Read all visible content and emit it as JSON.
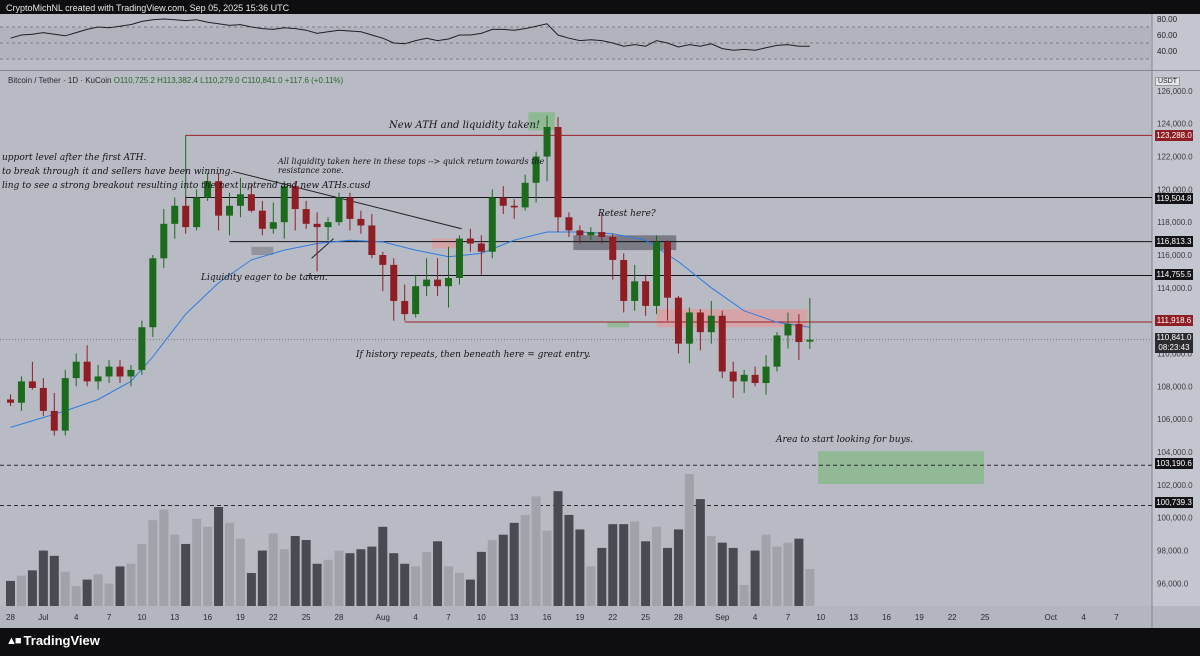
{
  "header": {
    "credit": "CryptoMichNL created with TradingView.com, Sep 05, 2025 15:36 UTC"
  },
  "symbol": {
    "name": "Bitcoin / Tether · 1D · KuCoin",
    "ohlc": "O110,725.2 H113,382.4 L110,279.0 C110,841.0 +117.6 (+0.11%)"
  },
  "currency_badge": "USDT",
  "logo_text": "TradingView",
  "colors": {
    "bg": "#b8bac4",
    "bull": "#1c6a1c",
    "bear": "#8f1e24",
    "ma": "#2f7de1",
    "vol_dark": "#4a4b52",
    "vol_light": "#a1a3ab",
    "rsi": "#1f1f25",
    "resistance_line": "#9b2028",
    "supply_zone": "#d9a0a4",
    "demand_zone": "#8ab98e",
    "dark_zone": "#6f7079"
  },
  "annotations": {
    "ath": "New ATH and liquidity taken!",
    "support1": "upport level after the first ATH.",
    "support2": "to break through it and sellers have been winning.",
    "support3": "ling to see a strong breakout resulting into the next uptrend and new ATHs.cusd",
    "tops1": "All liquidity taken here in these tops --> quick return towards the",
    "tops2": "resistance zone.",
    "retest": "Retest here?",
    "liquidity": "Liquidity eager to be taken.",
    "history": "If history repeats, then beneath here = great entry.",
    "buys": "Area to start looking for buys."
  },
  "price_tags": {
    "p123288": "123,288.0",
    "p119504": "119,504.8",
    "p116813": "116,813.3",
    "p114755": "114,755.5",
    "p111918": "111,918.6",
    "current": "110,841.0",
    "countdown": "08:23:43",
    "p103190": "103,190.6",
    "p100739": "100,739.3"
  },
  "chart_data": [
    {
      "type": "candlestick",
      "symbol": "Bitcoin / Tether",
      "timeframe": "1D",
      "y_axis_ticks": [
        96000,
        98000,
        100000,
        102000,
        104000,
        106000,
        108000,
        110000,
        112000,
        114000,
        116000,
        118000,
        120000,
        122000,
        124000,
        126000
      ],
      "y_axis_tick_labels": [
        "96,000.0",
        "98,000.0",
        "100,000.0",
        "102,000.0",
        "104,000.0",
        "106,000.0",
        "108,000.0",
        "110,000.0",
        "112,000.0",
        "114,000.0",
        "116,000.0",
        "118,000.0",
        "120,000.0",
        "122,000.0",
        "124,000.0",
        "126,000.0"
      ],
      "x_axis_labels": [
        "28",
        "Jul",
        "4",
        "7",
        "10",
        "13",
        "16",
        "19",
        "22",
        "25",
        "28",
        "Aug",
        "4",
        "7",
        "10",
        "13",
        "16",
        "19",
        "22",
        "25",
        "28",
        "Sep",
        "4",
        "7",
        "10",
        "13",
        "16",
        "19",
        "22",
        "25",
        "Oct",
        "4",
        "7"
      ],
      "x_axis_label_days": [
        0,
        3,
        6,
        9,
        12,
        15,
        18,
        21,
        24,
        27,
        30,
        34,
        37,
        40,
        43,
        46,
        49,
        52,
        55,
        58,
        61,
        65,
        68,
        71,
        74,
        77,
        80,
        83,
        86,
        89,
        95,
        98,
        101
      ],
      "candles": [
        [
          107200,
          107500,
          106800,
          107000
        ],
        [
          107000,
          108600,
          106500,
          108300
        ],
        [
          108300,
          109500,
          107800,
          107900
        ],
        [
          107900,
          108500,
          106200,
          106500
        ],
        [
          106500,
          107600,
          105000,
          105300
        ],
        [
          105300,
          109000,
          105000,
          108500
        ],
        [
          108500,
          110000,
          108000,
          109500
        ],
        [
          109500,
          110500,
          108000,
          108300
        ],
        [
          108300,
          109300,
          107800,
          108600
        ],
        [
          108600,
          109600,
          108200,
          109200
        ],
        [
          109200,
          109600,
          108200,
          108600
        ],
        [
          108600,
          109300,
          108000,
          109000
        ],
        [
          109000,
          112000,
          108700,
          111600
        ],
        [
          111600,
          116000,
          111000,
          115800
        ],
        [
          115800,
          118800,
          115200,
          117900
        ],
        [
          117900,
          119500,
          117000,
          119000
        ],
        [
          119000,
          119500,
          117300,
          117700
        ],
        [
          117700,
          120000,
          117500,
          119500
        ],
        [
          119500,
          121000,
          119300,
          120500
        ],
        [
          120500,
          121000,
          117500,
          118400
        ],
        [
          118400,
          119800,
          117200,
          119000
        ],
        [
          119000,
          120700,
          118300,
          119700
        ],
        [
          119700,
          120300,
          118600,
          118700
        ],
        [
          118700,
          119300,
          117200,
          117600
        ],
        [
          117600,
          119200,
          117300,
          118000
        ],
        [
          118000,
          120500,
          117000,
          120200
        ],
        [
          120200,
          120500,
          117500,
          118800
        ],
        [
          118800,
          119300,
          117600,
          117900
        ],
        [
          117900,
          118600,
          115000,
          117700
        ],
        [
          117700,
          118300,
          116900,
          118000
        ],
        [
          118000,
          119800,
          117800,
          119500
        ],
        [
          119500,
          119800,
          117500,
          118200
        ],
        [
          118200,
          118700,
          117300,
          117800
        ],
        [
          117800,
          118500,
          115800,
          116000
        ],
        [
          116000,
          116200,
          113800,
          115400
        ],
        [
          115400,
          115800,
          112000,
          113200
        ],
        [
          113200,
          114200,
          112000,
          112400
        ],
        [
          112400,
          114800,
          112200,
          114100
        ],
        [
          114100,
          115800,
          113500,
          114500
        ],
        [
          114500,
          115800,
          113500,
          114100
        ],
        [
          114100,
          116500,
          112800,
          114600
        ],
        [
          114600,
          117200,
          114200,
          117000
        ],
        [
          117000,
          117600,
          116200,
          116700
        ],
        [
          116700,
          117200,
          114800,
          116200
        ],
        [
          116200,
          120000,
          115800,
          119500
        ],
        [
          119500,
          120200,
          118500,
          119000
        ],
        [
          119000,
          119400,
          118200,
          118900
        ],
        [
          118900,
          120900,
          118700,
          120400
        ],
        [
          120400,
          122300,
          119200,
          122000
        ],
        [
          122000,
          124500,
          120500,
          123800
        ],
        [
          123800,
          124400,
          117400,
          118300
        ],
        [
          118300,
          118600,
          117100,
          117500
        ],
        [
          117500,
          117800,
          116700,
          117200
        ],
        [
          117200,
          117700,
          116900,
          117400
        ],
        [
          117400,
          118600,
          116700,
          117100
        ],
        [
          117100,
          117300,
          114500,
          115700
        ],
        [
          115700,
          116100,
          112500,
          113200
        ],
        [
          113200,
          115400,
          112600,
          114400
        ],
        [
          114400,
          114800,
          112300,
          112900
        ],
        [
          112900,
          117200,
          112400,
          116800
        ],
        [
          116800,
          116900,
          112000,
          113400
        ],
        [
          113400,
          113500,
          110000,
          110600
        ],
        [
          110600,
          112800,
          109400,
          112500
        ],
        [
          112500,
          112700,
          110200,
          111300
        ],
        [
          111300,
          113200,
          110600,
          112300
        ],
        [
          112300,
          112600,
          108500,
          108900
        ],
        [
          108900,
          109500,
          107300,
          108300
        ],
        [
          108300,
          109000,
          107600,
          108700
        ],
        [
          108700,
          109200,
          108000,
          108200
        ],
        [
          108200,
          109900,
          107500,
          109200
        ],
        [
          109200,
          111300,
          108900,
          111100
        ],
        [
          111100,
          112500,
          110300,
          111800
        ],
        [
          111800,
          112400,
          109600,
          110700
        ],
        [
          110725.2,
          113382.4,
          110279.0,
          110841.0
        ]
      ],
      "volume": [
        19,
        23,
        27,
        42,
        38,
        26,
        15,
        20,
        24,
        17,
        30,
        32,
        47,
        65,
        73,
        54,
        47,
        66,
        60,
        75,
        63,
        51,
        25,
        42,
        55,
        43,
        53,
        50,
        32,
        35,
        42,
        40,
        43,
        45,
        60,
        40,
        32,
        30,
        41,
        49,
        30,
        25,
        20,
        41,
        50,
        54,
        63,
        69,
        83,
        57,
        87,
        69,
        58,
        30,
        44,
        62,
        62,
        64,
        49,
        60,
        44,
        58,
        100,
        81,
        53,
        48,
        44,
        16,
        42,
        54,
        45,
        48,
        51,
        28
      ],
      "moving_average": [
        [
          0,
          105500
        ],
        [
          5,
          106500
        ],
        [
          8,
          107200
        ],
        [
          11,
          108300
        ],
        [
          13,
          109800
        ],
        [
          16,
          112400
        ],
        [
          19,
          114300
        ],
        [
          22,
          115700
        ],
        [
          25,
          116300
        ],
        [
          28,
          116700
        ],
        [
          31,
          116900
        ],
        [
          34,
          116800
        ],
        [
          37,
          116300
        ],
        [
          40,
          115900
        ],
        [
          43,
          116100
        ],
        [
          46,
          116900
        ],
        [
          49,
          117400
        ],
        [
          52,
          117400
        ],
        [
          55,
          117300
        ],
        [
          58,
          116900
        ],
        [
          61,
          115600
        ],
        [
          64,
          114000
        ],
        [
          67,
          112600
        ],
        [
          70,
          111900
        ],
        [
          73,
          111600
        ]
      ],
      "levels": [
        123288.0,
        119504.8,
        116813.3,
        114755.5,
        111918.6,
        103190.6,
        100739.3
      ],
      "current_price": 110841.0
    },
    {
      "type": "line",
      "name": "RSI",
      "y_axis_tick_labels": [
        "40.00",
        "60.00",
        "80.00"
      ],
      "values": [
        56,
        60,
        61,
        63,
        61,
        59,
        63,
        67,
        70,
        69,
        71,
        73,
        77,
        79,
        80,
        79,
        78,
        79,
        76,
        74,
        72,
        73,
        70,
        68,
        67,
        69,
        68,
        66,
        62,
        64,
        66,
        65,
        64,
        60,
        56,
        50,
        49,
        53,
        56,
        53,
        55,
        60,
        60,
        62,
        67,
        67,
        66,
        68,
        71,
        74,
        60,
        56,
        53,
        54,
        53,
        50,
        46,
        48,
        46,
        53,
        50,
        45,
        48,
        46,
        49,
        43,
        41,
        42,
        41,
        44,
        47,
        48,
        46,
        46
      ]
    }
  ]
}
